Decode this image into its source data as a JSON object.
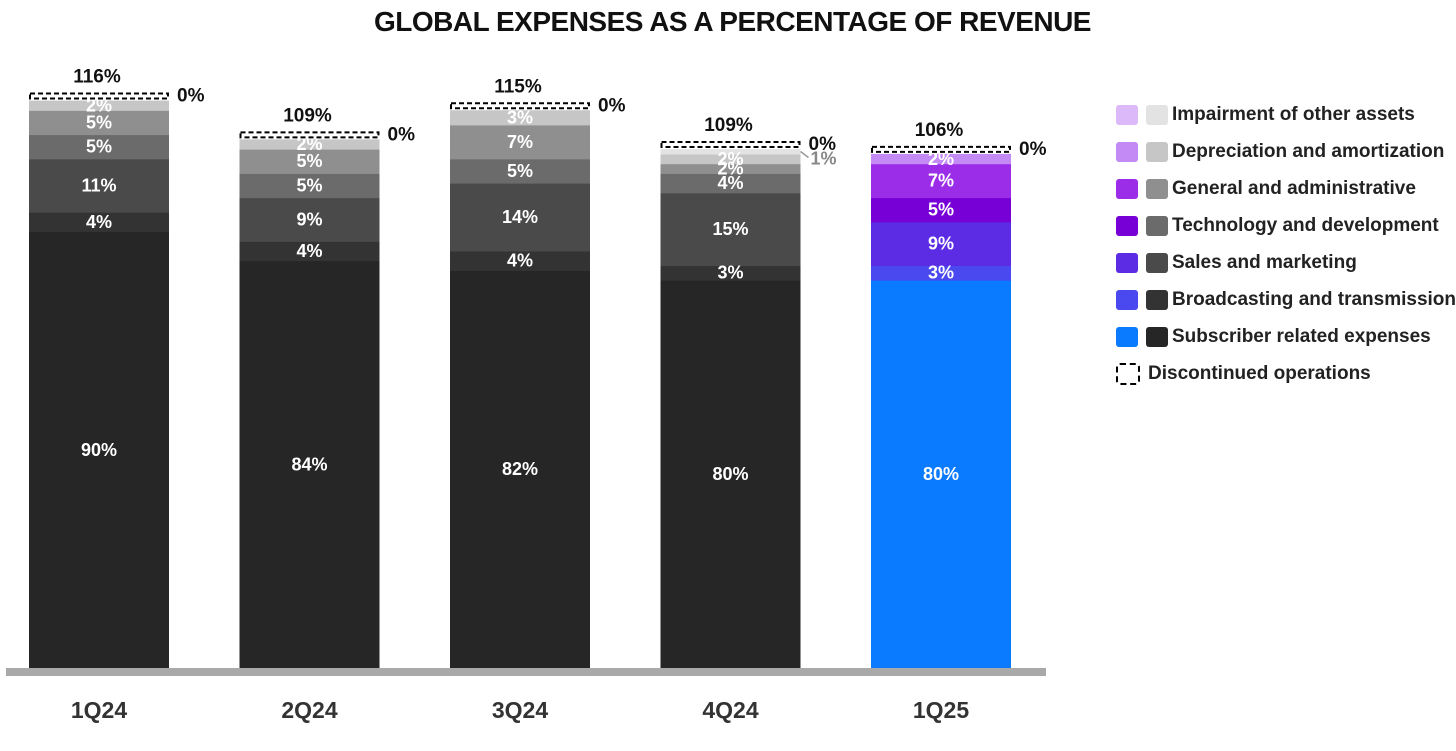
{
  "title": "GLOBAL EXPENSES AS A PERCENTAGE OF REVENUE",
  "chart_data": {
    "type": "bar",
    "stacked": true,
    "categories": [
      "1Q24",
      "2Q24",
      "3Q24",
      "4Q24",
      "1Q25"
    ],
    "totals": [
      116,
      109,
      115,
      109,
      106
    ],
    "totals_labels": [
      "116%",
      "109%",
      "115%",
      "109%",
      "106%"
    ],
    "discontinued_labels": [
      "0%",
      "0%",
      "0%",
      "0%",
      "0%"
    ],
    "ylim": [
      0,
      120
    ],
    "series": [
      {
        "name": "Subscriber related expenses",
        "values": [
          90,
          84,
          82,
          80,
          80
        ],
        "labels": [
          "90%",
          "84%",
          "82%",
          "80%",
          "80%"
        ],
        "color_grey": "#262626",
        "color_accent": "#0a7bff"
      },
      {
        "name": "Broadcasting and transmission",
        "values": [
          4,
          4,
          4,
          3,
          3
        ],
        "labels": [
          "4%",
          "4%",
          "4%",
          "3%",
          "3%"
        ],
        "color_grey": "#333333",
        "color_accent": "#4a49ef"
      },
      {
        "name": "Sales and marketing",
        "values": [
          11,
          9,
          14,
          15,
          9
        ],
        "labels": [
          "11%",
          "9%",
          "14%",
          "15%",
          "9%"
        ],
        "color_grey": "#4a4a4a",
        "color_accent": "#5c2ce5"
      },
      {
        "name": "Technology and development",
        "values": [
          5,
          5,
          5,
          4,
          5
        ],
        "labels": [
          "5%",
          "5%",
          "5%",
          "4%",
          "5%"
        ],
        "color_grey": "#6b6b6b",
        "color_accent": "#7700d6"
      },
      {
        "name": "General and administrative",
        "values": [
          5,
          5,
          7,
          2,
          7
        ],
        "labels": [
          "5%",
          "5%",
          "7%",
          "2%",
          "7%"
        ],
        "color_grey": "#8f8f8f",
        "color_accent": "#9b2de8"
      },
      {
        "name": "Depreciation and amortization",
        "values": [
          2,
          2,
          3,
          2,
          2
        ],
        "labels": [
          "2%",
          "2%",
          "3%",
          "2%",
          "2%"
        ],
        "color_grey": "#c6c6c6",
        "color_accent": "#c38af5"
      },
      {
        "name": "Impairment of other assets",
        "values": [
          0,
          0,
          0,
          1,
          0
        ],
        "labels": [
          "",
          "",
          "",
          "1%",
          ""
        ],
        "color_grey": "#e3e3e3",
        "color_accent": "#dcbaf9"
      }
    ],
    "legend_items": [
      {
        "label": "Impairment of other assets",
        "color_accent": "#dcbaf9",
        "color_grey": "#e3e3e3"
      },
      {
        "label": "Depreciation and amortization",
        "color_accent": "#c38af5",
        "color_grey": "#c6c6c6"
      },
      {
        "label": "General and administrative",
        "color_accent": "#9b2de8",
        "color_grey": "#8f8f8f"
      },
      {
        "label": "Technology and development",
        "color_accent": "#7700d6",
        "color_grey": "#6b6b6b"
      },
      {
        "label": "Sales and marketing",
        "color_accent": "#5c2ce5",
        "color_grey": "#4a4a4a"
      },
      {
        "label": "Broadcasting and transmission",
        "color_accent": "#4a49ef",
        "color_grey": "#333333"
      },
      {
        "label": "Subscriber related expenses",
        "color_accent": "#0a7bff",
        "color_grey": "#262626"
      }
    ],
    "discontinued_label": "Discontinued operations",
    "highlight_category": "1Q25",
    "legend_position": "right"
  }
}
